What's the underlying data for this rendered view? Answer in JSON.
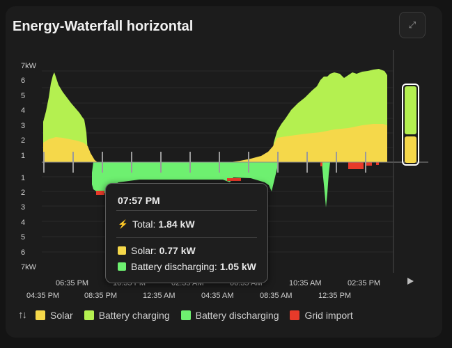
{
  "card": {
    "title": "Energy-Waterfall horizontal",
    "expand_icon": "expand-icon"
  },
  "colors": {
    "solar": "#f5d84a",
    "battery_charging": "#b4f050",
    "battery_discharging": "#6ef070",
    "grid_import": "#e83a2a",
    "background": "#1c1c1c"
  },
  "y_axis": {
    "top_labels": [
      "7kW",
      "6",
      "5",
      "4",
      "3",
      "2",
      "1"
    ],
    "bottom_labels": [
      "1",
      "2",
      "3",
      "4",
      "5",
      "6",
      "7kW"
    ]
  },
  "x_axis": {
    "upper_labels": [
      "06:35 PM",
      "10:35 PM",
      "02:35 AM",
      "06:35 AM",
      "10:35 AM",
      "02:35 PM"
    ],
    "lower_labels": [
      "04:35 PM",
      "08:35 PM",
      "12:35 AM",
      "04:35 AM",
      "08:35 AM",
      "12:35 PM"
    ]
  },
  "tooltip": {
    "time": "07:57 PM",
    "total_label": "Total:",
    "total_value": "1.84 kW",
    "solar_label": "Solar:",
    "solar_value": "0.77 kW",
    "battery_label": "Battery discharging:",
    "battery_value": "1.05 kW"
  },
  "legend": {
    "sort_icon": "sort-arrows-icon",
    "items": [
      "Solar",
      "Battery charging",
      "Battery discharging",
      "Grid import"
    ]
  },
  "play_icon": "play-icon"
}
